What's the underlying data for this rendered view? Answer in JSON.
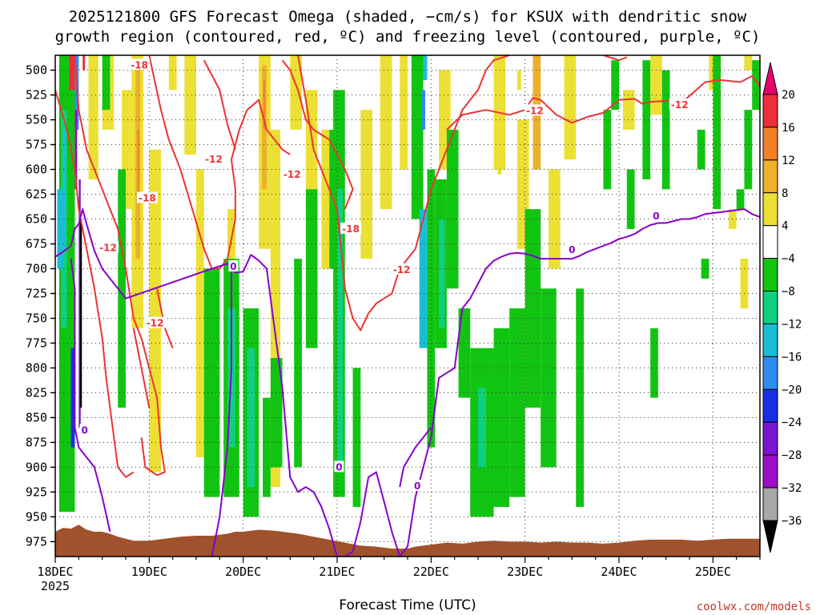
{
  "title": {
    "line1": "2025121800 GFS Forecast Omega (shaded, −cm/s) for KSUX with dendritic snow",
    "line2": "growth region (contoured, red, ºC) and freezing level (contoured, purple, ºC)"
  },
  "credit": "coolwx.com/models",
  "chart_data": {
    "type": "heatmap",
    "title": "2025121800 GFS Forecast Omega (shaded, −cm/s) for KSUX with dendritic snow growth region (contoured, red, ºC) and freezing level (contoured, purple, ºC)",
    "xlabel": "Forecast Time (UTC)",
    "ylabel": "",
    "x_ticks": [
      "18DEC",
      "19DEC",
      "20DEC",
      "21DEC",
      "22DEC",
      "23DEC",
      "24DEC",
      "25DEC"
    ],
    "x_tick_sub": "2025",
    "x_range_hours": [
      0,
      180
    ],
    "y_ticks": [
      500,
      525,
      550,
      575,
      600,
      625,
      650,
      675,
      700,
      725,
      750,
      775,
      800,
      825,
      850,
      875,
      900,
      925,
      950,
      975
    ],
    "y_range_hpa": [
      485,
      990
    ],
    "y_inverted": true,
    "grid": true,
    "colorbar": {
      "labels": [
        "20",
        "16",
        "12",
        "8",
        "4",
        "−4",
        "−8",
        "−12",
        "−16",
        "−20",
        "−24",
        "−28",
        "−32",
        "−36"
      ],
      "colors": [
        "#e8006e",
        "#ee2f3a",
        "#f07f28",
        "#ecb02c",
        "#ece034",
        "#ffffff",
        "#12c412",
        "#0fd080",
        "#19bed6",
        "#2e8ef0",
        "#1a2ee6",
        "#7a16d2",
        "#9e0ec6",
        "#a8a8a8",
        "#000000"
      ]
    },
    "terrain_color": "#a0522d",
    "red_contour_color": "#ee3333",
    "purple_contour_color": "#8800cc",
    "red_contour_labels": [
      {
        "text": "-18",
        "t": 21.5,
        "p": 495
      },
      {
        "text": "-12",
        "t": 40.5,
        "p": 590
      },
      {
        "text": "-18",
        "t": 23.5,
        "p": 629
      },
      {
        "text": "-12",
        "t": 13.5,
        "p": 679
      },
      {
        "text": "-12",
        "t": 25.5,
        "p": 755
      },
      {
        "text": "-12",
        "t": 60.5,
        "p": 605
      },
      {
        "text": "-18",
        "t": 75.5,
        "p": 660
      },
      {
        "text": "-12",
        "t": 88.5,
        "p": 701
      },
      {
        "text": "-12",
        "t": 122.5,
        "p": 541
      },
      {
        "text": "-12",
        "t": 159.5,
        "p": 535
      }
    ],
    "purple_contour_labels": [
      {
        "text": "0",
        "t": 45.5,
        "p": 698
      },
      {
        "text": "0",
        "t": 132,
        "p": 681
      },
      {
        "text": "0",
        "t": 153.5,
        "p": 647
      },
      {
        "text": "0",
        "t": 7.5,
        "p": 863
      },
      {
        "text": "0",
        "t": 72.5,
        "p": 900
      },
      {
        "text": "0",
        "t": 92.5,
        "p": 919
      }
    ],
    "freezing_level_0C": {
      "t": [
        0,
        2,
        4,
        5,
        6,
        7,
        8,
        10,
        12,
        14,
        16,
        18,
        40,
        44,
        46,
        48,
        50,
        52,
        54,
        56,
        58,
        60,
        62,
        64,
        66,
        68,
        70,
        72,
        74,
        76,
        78,
        80,
        82,
        84,
        86,
        88,
        90,
        92,
        94,
        96,
        98,
        100,
        102,
        104,
        106,
        108,
        110,
        112,
        114,
        116,
        118,
        120,
        122,
        124,
        126,
        128,
        130,
        132,
        134,
        136,
        138,
        140,
        142,
        144,
        146,
        148,
        150,
        152,
        154,
        156,
        158,
        160,
        162,
        164,
        166,
        168,
        170,
        172,
        174,
        176,
        178,
        180
      ],
      "p": [
        688,
        683,
        677,
        660,
        655,
        640,
        655,
        682,
        700,
        710,
        720,
        730,
        700,
        695,
        704,
        703,
        686,
        692,
        700,
        760,
        820,
        910,
        925,
        920,
        925,
        940,
        962,
        990,
        990,
        985,
        955,
        910,
        905,
        935,
        965,
        990,
        980,
        930,
        900,
        870,
        810,
        805,
        800,
        740,
        730,
        715,
        700,
        692,
        688,
        685,
        684,
        685,
        687,
        690,
        690,
        690,
        690,
        690,
        687,
        683,
        680,
        677,
        674,
        670,
        668,
        665,
        660,
        656,
        654,
        654,
        652,
        650,
        650,
        648,
        645,
        644,
        643,
        642,
        641,
        640,
        645,
        648
      ]
    },
    "omega_note": "shaded omega field (−cm/s); warm colors = upward motion, green/blue = downward motion"
  }
}
